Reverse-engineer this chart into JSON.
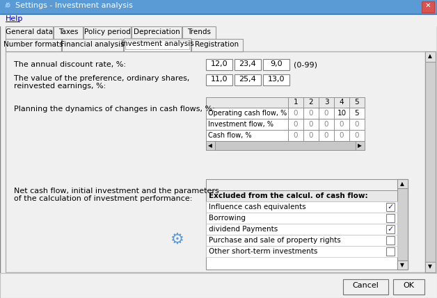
{
  "title": "Settings - Investment analysis",
  "help_text": "Help",
  "tabs_row1": [
    "General data",
    "Taxes",
    "Policy period",
    "Depreciation",
    "Trends"
  ],
  "tabs_row2": [
    "Number formats",
    "Financial analysis",
    "Investment analysis",
    "Registration"
  ],
  "active_tab_idx": 2,
  "label1": "The annual discount rate, %:",
  "values1": [
    "12,0",
    "23,4",
    "9,0"
  ],
  "range1": "(0-99)",
  "label2a": "The value of the preference, ordinary shares,",
  "label2b": "reinvested earnings, %:",
  "values2": [
    "11,0",
    "25,4",
    "13,0"
  ],
  "label3": "Planning the dynamics of changes in cash flows, %:",
  "table_cols": [
    "1",
    "2",
    "3",
    "4",
    "5"
  ],
  "table_rows": [
    "Operating cash flow, %",
    "Investment flow, %",
    "Cash flow, %"
  ],
  "table_data": [
    [
      "0",
      "0",
      "0",
      "10",
      "5"
    ],
    [
      "0",
      "0",
      "0",
      "0",
      "0"
    ],
    [
      "0",
      "0",
      "0",
      "0",
      "0"
    ]
  ],
  "label4a": "Net cash flow, initial investment and the parameters",
  "label4b": "of the calculation of investment performance:",
  "excluded_header": "Excluded from the calcul. of cash flow:",
  "excluded_items": [
    {
      "label": "Influence cash equivalents",
      "checked": true
    },
    {
      "label": "Borrowing",
      "checked": false
    },
    {
      "label": "dividend Payments",
      "checked": true
    },
    {
      "label": "Purchase and sale of property rights",
      "checked": false
    },
    {
      "label": "Other short-term investments",
      "checked": false
    }
  ],
  "btn_cancel": "Cancel",
  "btn_ok": "OK",
  "bg_dialog": "#f0f0f0",
  "bg_content": "#e8e8e8",
  "white": "#ffffff",
  "title_bar_left": "#4a90d9",
  "title_bar_right": "#2060b0",
  "close_btn": "#e0e0e0",
  "tab_bg": "#e0e0e0",
  "tab_active_bg": "#ffffff",
  "border_dark": "#808080",
  "border_light": "#c0c0c0",
  "grid_bg": "#d8d8d8",
  "list_header_bg": "#e8e8e8",
  "scrollbar_bg": "#c8c8c8",
  "link_color": "#0000bb",
  "text_gray": "#888888"
}
